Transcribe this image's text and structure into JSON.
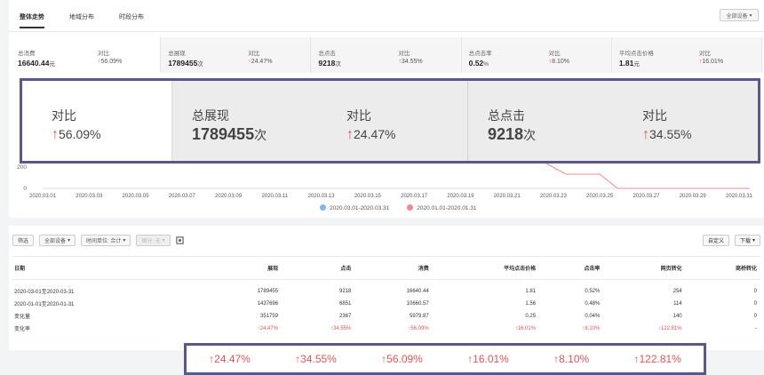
{
  "tabs": [
    {
      "label": "整体走势",
      "active": true
    },
    {
      "label": "地域分布",
      "active": false
    },
    {
      "label": "时段分布",
      "active": false
    }
  ],
  "device_filter": "全部设备",
  "kpis": [
    {
      "label": "总消费",
      "value": "16640.44",
      "unit": "元",
      "compare_label": "对比",
      "compare": "56.09%"
    },
    {
      "label": "总展现",
      "value": "1789455",
      "unit": "次",
      "compare_label": "对比",
      "compare": "24.47%"
    },
    {
      "label": "总点击",
      "value": "9218",
      "unit": "次",
      "compare_label": "对比",
      "compare": "34.55%"
    },
    {
      "label": "总点击率",
      "value": "0.52",
      "unit": "%",
      "compare_label": "对比",
      "compare": "8.10%"
    },
    {
      "label": "平均点击价格",
      "value": "1.81",
      "unit": "元",
      "compare_label": "对比",
      "compare": "16.01%"
    }
  ],
  "zoom_kpi": {
    "compare_label_1": "对比",
    "compare_1": "56.09%",
    "label_2": "总展现",
    "value_2": "1789455",
    "unit_2": "次",
    "compare_label_2": "对比",
    "compare_2": "24.47%",
    "label_3": "总点击",
    "value_3": "9218",
    "unit_3": "次",
    "compare_label_3": "对比",
    "compare_3": "34.55%"
  },
  "chart_data": {
    "type": "line",
    "x": [
      "2020.03.01",
      "2020.03.03",
      "2020.03.05",
      "2020.03.07",
      "2020.03.09",
      "2020.03.11",
      "2020.03.13",
      "2020.03.15",
      "2020.03.17",
      "2020.03.19",
      "2020.03.21",
      "2020.03.23",
      "2020.03.25",
      "2020.03.27",
      "2020.03.29",
      "2020.03.31"
    ],
    "y_ticks": [
      "200",
      "0"
    ],
    "series": [
      {
        "name": "2020.03.01-2020.03.31",
        "color": "#7db6ee"
      },
      {
        "name": "2020.01.01-2020.01.31",
        "color": "#f08c8c"
      }
    ]
  },
  "toolbar": {
    "filter": "筛选",
    "device": "全部设备",
    "time_unit": "时间单位: 合计",
    "compare": "细分: 无",
    "custom": "自定义",
    "download": "下载"
  },
  "table": {
    "headers": [
      "日期",
      "展现",
      "点击",
      "消费",
      "平均点击价格",
      "点击率",
      "网页转化",
      "商桥转化"
    ],
    "rows": [
      [
        "2020-03-01至2020-03-31",
        "1789455",
        "9218",
        "16640.44",
        "1.81",
        "0.52%",
        "254",
        "0"
      ],
      [
        "2020-01-01至2020-01-31",
        "1437696",
        "6851",
        "10660.57",
        "1.56",
        "0.48%",
        "114",
        "0"
      ],
      [
        "变化量",
        "351759",
        "2367",
        "5979.87",
        "0.25",
        "0.04%",
        "140",
        "0"
      ],
      [
        "变化率",
        "↑24.47%",
        "↑34.55%",
        "↑56.09%",
        "↑16.01%",
        "↑8.10%",
        "↑122.81%",
        "-"
      ]
    ]
  },
  "zoom_rates": [
    "24.47%",
    "34.55%",
    "56.09%",
    "16.01%",
    "8.10%",
    "122.81%"
  ]
}
